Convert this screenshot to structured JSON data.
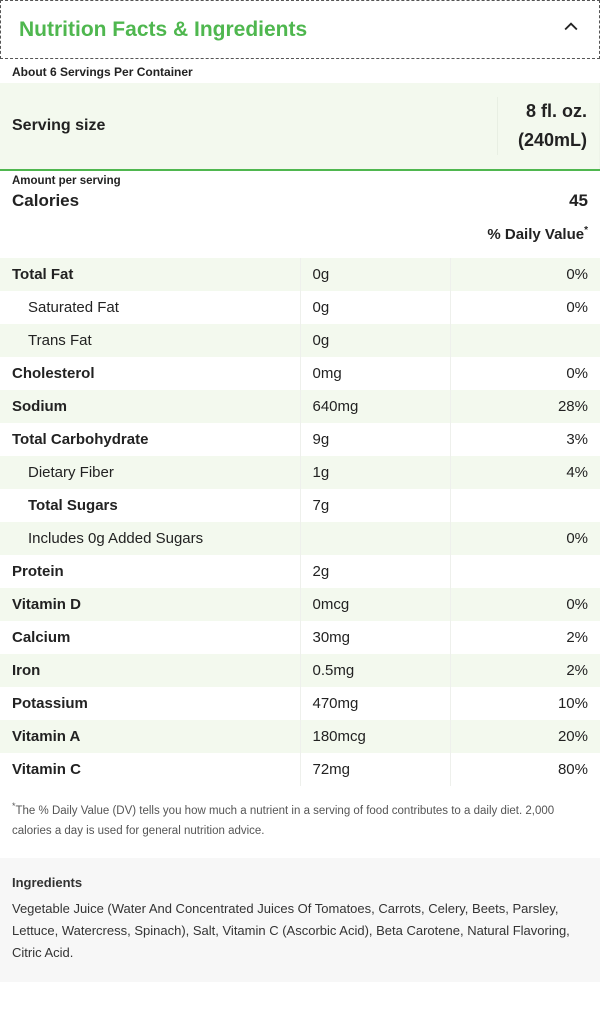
{
  "header": {
    "title": "Nutrition Facts & Ingredients"
  },
  "servings_per_container": "About 6 Servings Per Container",
  "serving_size": {
    "label": "Serving size",
    "amount_line1": "8 fl. oz.",
    "amount_line2": "(240mL)"
  },
  "amount_per_serving_label": "Amount per serving",
  "calories": {
    "label": "Calories",
    "value": "45"
  },
  "daily_value_header": "% Daily Value",
  "nutrients": [
    {
      "name": "Total Fat",
      "amount": "0g",
      "dv": "0%",
      "indent": false,
      "tint": true,
      "bold": true
    },
    {
      "name": "Saturated Fat",
      "amount": "0g",
      "dv": "0%",
      "indent": true,
      "tint": false,
      "bold": false
    },
    {
      "name": "Trans Fat",
      "amount": "0g",
      "dv": "",
      "indent": true,
      "tint": true,
      "bold": false
    },
    {
      "name": "Cholesterol",
      "amount": "0mg",
      "dv": "0%",
      "indent": false,
      "tint": false,
      "bold": true
    },
    {
      "name": "Sodium",
      "amount": "640mg",
      "dv": "28%",
      "indent": false,
      "tint": true,
      "bold": true
    },
    {
      "name": "Total Carbohydrate",
      "amount": "9g",
      "dv": "3%",
      "indent": false,
      "tint": false,
      "bold": true
    },
    {
      "name": "Dietary Fiber",
      "amount": "1g",
      "dv": "4%",
      "indent": true,
      "tint": true,
      "bold": false
    },
    {
      "name": "Total Sugars",
      "amount": "7g",
      "dv": "",
      "indent": true,
      "tint": false,
      "bold": true
    },
    {
      "name": "Includes 0g Added Sugars",
      "amount": "",
      "dv": "0%",
      "indent": true,
      "tint": true,
      "bold": false
    },
    {
      "name": "Protein",
      "amount": "2g",
      "dv": "",
      "indent": false,
      "tint": false,
      "bold": true
    },
    {
      "name": "Vitamin D",
      "amount": "0mcg",
      "dv": "0%",
      "indent": false,
      "tint": true,
      "bold": true
    },
    {
      "name": "Calcium",
      "amount": "30mg",
      "dv": "2%",
      "indent": false,
      "tint": false,
      "bold": true
    },
    {
      "name": "Iron",
      "amount": "0.5mg",
      "dv": "2%",
      "indent": false,
      "tint": true,
      "bold": true
    },
    {
      "name": "Potassium",
      "amount": "470mg",
      "dv": "10%",
      "indent": false,
      "tint": false,
      "bold": true
    },
    {
      "name": "Vitamin A",
      "amount": "180mcg",
      "dv": "20%",
      "indent": false,
      "tint": true,
      "bold": true
    },
    {
      "name": "Vitamin C",
      "amount": "72mg",
      "dv": "80%",
      "indent": false,
      "tint": false,
      "bold": true
    }
  ],
  "footnote": "The % Daily Value (DV) tells you how much a nutrient in a serving of food contributes to a daily diet. 2,000 calories a day is used for general nutrition advice.",
  "ingredients": {
    "title": "Ingredients",
    "text": "Vegetable Juice (Water And Concentrated Juices Of Tomatoes, Carrots, Celery, Beets, Parsley, Lettuce, Watercress, Spinach), Salt, Vitamin C (Ascorbic Acid), Beta Carotene, Natural Flavoring, Citric Acid."
  },
  "colors": {
    "accent_green": "#4fb74f",
    "tint_bg": "#f3f9ee",
    "ingredients_bg": "#f7f7f7"
  }
}
